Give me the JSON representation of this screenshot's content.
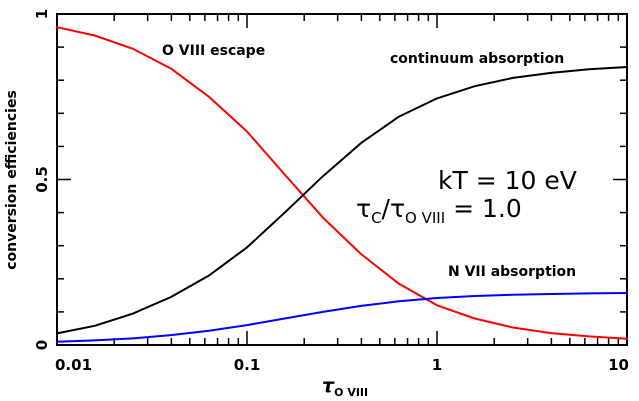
{
  "chart_data": {
    "type": "line",
    "title": "",
    "xlabel": "τ",
    "xlabel_subscript": "O VIII",
    "ylabel": "conversion efficiencies",
    "xscale": "log",
    "xlim": [
      0.01,
      10
    ],
    "ylim": [
      0,
      1.0
    ],
    "x_ticks": [
      0.01,
      0.1,
      1,
      10
    ],
    "x_tick_labels": [
      "0.01",
      "0.1",
      "1",
      "10"
    ],
    "y_ticks": [
      0,
      0.5,
      1
    ],
    "y_tick_labels": [
      "0",
      "0.5",
      "1"
    ],
    "grid": false,
    "series": [
      {
        "name": "O VIII escape",
        "color": "#ff0000",
        "x": [
          0.01,
          0.0158,
          0.0251,
          0.0398,
          0.0631,
          0.1,
          0.158,
          0.251,
          0.398,
          0.631,
          1,
          1.58,
          2.51,
          3.98,
          6.31,
          10
        ],
        "y": [
          0.96,
          0.935,
          0.895,
          0.835,
          0.75,
          0.645,
          0.515,
          0.385,
          0.275,
          0.185,
          0.12,
          0.08,
          0.053,
          0.036,
          0.026,
          0.019
        ]
      },
      {
        "name": "continuum absorption",
        "color": "#000000",
        "x": [
          0.01,
          0.0158,
          0.0251,
          0.0398,
          0.0631,
          0.1,
          0.158,
          0.251,
          0.398,
          0.631,
          1,
          1.58,
          2.51,
          3.98,
          6.31,
          10
        ],
        "y": [
          0.035,
          0.058,
          0.095,
          0.145,
          0.21,
          0.295,
          0.4,
          0.51,
          0.61,
          0.69,
          0.745,
          0.782,
          0.807,
          0.822,
          0.833,
          0.84
        ]
      },
      {
        "name": "N VII absorption",
        "color": "#0000ff",
        "x": [
          0.01,
          0.0158,
          0.0251,
          0.0398,
          0.0631,
          0.1,
          0.158,
          0.251,
          0.398,
          0.631,
          1,
          1.58,
          2.51,
          3.98,
          6.31,
          10
        ],
        "y": [
          0.01,
          0.014,
          0.02,
          0.03,
          0.043,
          0.06,
          0.08,
          0.1,
          0.118,
          0.132,
          0.142,
          0.148,
          0.152,
          0.154,
          0.156,
          0.157
        ]
      }
    ],
    "annotations": {
      "kT": "kT  =  10  eV",
      "tau_ratio_c": "τ",
      "tau_ratio_c_sub": "C",
      "tau_ratio_slash": "/τ",
      "tau_ratio_o_sub": "O  VIII",
      "tau_ratio_value": " =  1.0"
    }
  }
}
